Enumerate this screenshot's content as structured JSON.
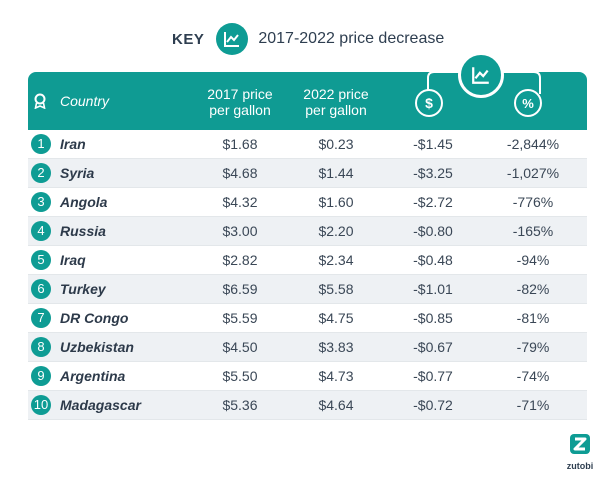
{
  "key": {
    "label": "KEY",
    "icon": "line-chart-icon",
    "text": "2017-2022 price decrease"
  },
  "header": {
    "country_icon": "badge-ribbon-icon",
    "country": "Country",
    "col_2017_line1": "2017 price",
    "col_2017_line2": "per gallon",
    "col_2022_line1": "2022 price",
    "col_2022_line2": "per gallon",
    "dollar_icon": "dollar-icon",
    "percent_icon": "percent-icon",
    "group_icon": "line-chart-icon"
  },
  "colors": {
    "teal": "#0f9b93",
    "row_alt": "#eef1f4",
    "text": "#2d3a4a"
  },
  "chart_data": {
    "type": "table",
    "columns": [
      "Country",
      "2017 price per gallon",
      "2022 price per gallon",
      "$",
      "%"
    ],
    "rows": [
      {
        "rank": "1",
        "country": "Iran",
        "p2017": "$1.68",
        "p2022": "$0.23",
        "diff": "-$1.45",
        "pct": "-2,844%"
      },
      {
        "rank": "2",
        "country": "Syria",
        "p2017": "$4.68",
        "p2022": "$1.44",
        "diff": "-$3.25",
        "pct": "-1,027%"
      },
      {
        "rank": "3",
        "country": "Angola",
        "p2017": "$4.32",
        "p2022": "$1.60",
        "diff": "-$2.72",
        "pct": "-776%"
      },
      {
        "rank": "4",
        "country": "Russia",
        "p2017": "$3.00",
        "p2022": "$2.20",
        "diff": "-$0.80",
        "pct": "-165%"
      },
      {
        "rank": "5",
        "country": "Iraq",
        "p2017": "$2.82",
        "p2022": "$2.34",
        "diff": "-$0.48",
        "pct": "-94%"
      },
      {
        "rank": "6",
        "country": "Turkey",
        "p2017": "$6.59",
        "p2022": "$5.58",
        "diff": "-$1.01",
        "pct": "-82%"
      },
      {
        "rank": "7",
        "country": "DR Congo",
        "p2017": "$5.59",
        "p2022": "$4.75",
        "diff": "-$0.85",
        "pct": "-81%"
      },
      {
        "rank": "8",
        "country": "Uzbekistan",
        "p2017": "$4.50",
        "p2022": "$3.83",
        "diff": "-$0.67",
        "pct": "-79%"
      },
      {
        "rank": "9",
        "country": "Argentina",
        "p2017": "$5.50",
        "p2022": "$4.73",
        "diff": "-$0.77",
        "pct": "-74%"
      },
      {
        "rank": "10",
        "country": "Madagascar",
        "p2017": "$5.36",
        "p2022": "$4.64",
        "diff": "-$0.72",
        "pct": "-71%"
      }
    ]
  },
  "logo": {
    "word": "zutobi",
    "icon": "zutobi-z-icon"
  }
}
